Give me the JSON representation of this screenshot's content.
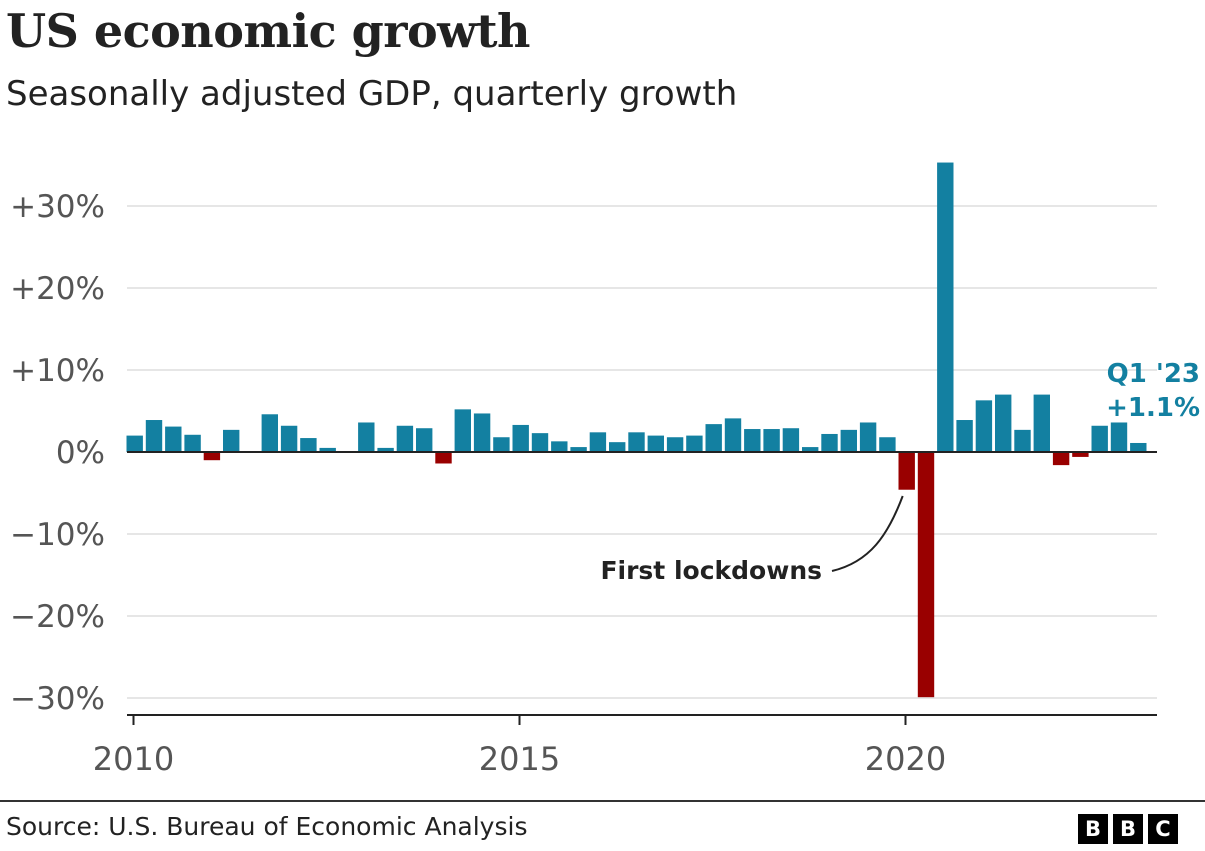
{
  "header": {
    "title": "US economic growth",
    "subtitle": "Seasonally adjusted GDP, quarterly growth"
  },
  "footer": {
    "source": "Source: U.S. Bureau of Economic Analysis",
    "logo": [
      "B",
      "B",
      "C"
    ]
  },
  "colors": {
    "positive": "#1380A1",
    "negative": "#990000",
    "grid": "#dddddd",
    "axis": "#222222",
    "label_text": "#222222"
  },
  "chart_data": {
    "type": "bar",
    "title": "US economic growth",
    "subtitle": "Seasonally adjusted GDP, quarterly growth",
    "xlabel": "",
    "ylabel": "",
    "x_start_year": 2010,
    "ylim": [
      -30,
      35
    ],
    "y_ticks": [
      30,
      20,
      10,
      0,
      -10,
      -20,
      -30
    ],
    "y_tick_labels": [
      "+30%",
      "+20%",
      "+10%",
      "0%",
      "−10%",
      "−20%",
      "−30%"
    ],
    "x_ticks": [
      2010,
      2015,
      2020
    ],
    "x_tick_labels": [
      "2010",
      "2015",
      "2020"
    ],
    "grid": true,
    "legend": "none",
    "categories": [
      "Q1 2010",
      "Q2 2010",
      "Q3 2010",
      "Q4 2010",
      "Q1 2011",
      "Q2 2011",
      "Q3 2011",
      "Q4 2011",
      "Q1 2012",
      "Q2 2012",
      "Q3 2012",
      "Q4 2012",
      "Q1 2013",
      "Q2 2013",
      "Q3 2013",
      "Q4 2013",
      "Q1 2014",
      "Q2 2014",
      "Q3 2014",
      "Q4 2014",
      "Q1 2015",
      "Q2 2015",
      "Q3 2015",
      "Q4 2015",
      "Q1 2016",
      "Q2 2016",
      "Q3 2016",
      "Q4 2016",
      "Q1 2017",
      "Q2 2017",
      "Q3 2017",
      "Q4 2017",
      "Q1 2018",
      "Q2 2018",
      "Q3 2018",
      "Q4 2018",
      "Q1 2019",
      "Q2 2019",
      "Q3 2019",
      "Q4 2019",
      "Q1 2020",
      "Q2 2020",
      "Q3 2020",
      "Q4 2020",
      "Q1 2021",
      "Q2 2021",
      "Q3 2021",
      "Q4 2021",
      "Q1 2022",
      "Q2 2022",
      "Q3 2022",
      "Q4 2022",
      "Q1 2023"
    ],
    "values": [
      2.0,
      3.9,
      3.1,
      2.1,
      -1.0,
      2.7,
      -0.1,
      4.6,
      3.2,
      1.7,
      0.5,
      0.1,
      3.6,
      0.5,
      3.2,
      2.9,
      -1.4,
      5.2,
      4.7,
      1.8,
      3.3,
      2.3,
      1.3,
      0.6,
      2.4,
      1.2,
      2.4,
      2.0,
      1.8,
      2.0,
      3.4,
      4.1,
      2.8,
      2.8,
      2.9,
      0.6,
      2.2,
      2.7,
      3.6,
      1.8,
      -4.6,
      -29.9,
      35.3,
      3.9,
      6.3,
      7.0,
      2.7,
      7.0,
      -1.6,
      -0.6,
      3.2,
      3.6,
      1.1
    ],
    "annotations": [
      {
        "text": "First lockdowns",
        "category": "Q2 2020"
      },
      {
        "lines": [
          "Q1 '23",
          "+1.1%"
        ],
        "category": "Q1 2023"
      }
    ]
  }
}
